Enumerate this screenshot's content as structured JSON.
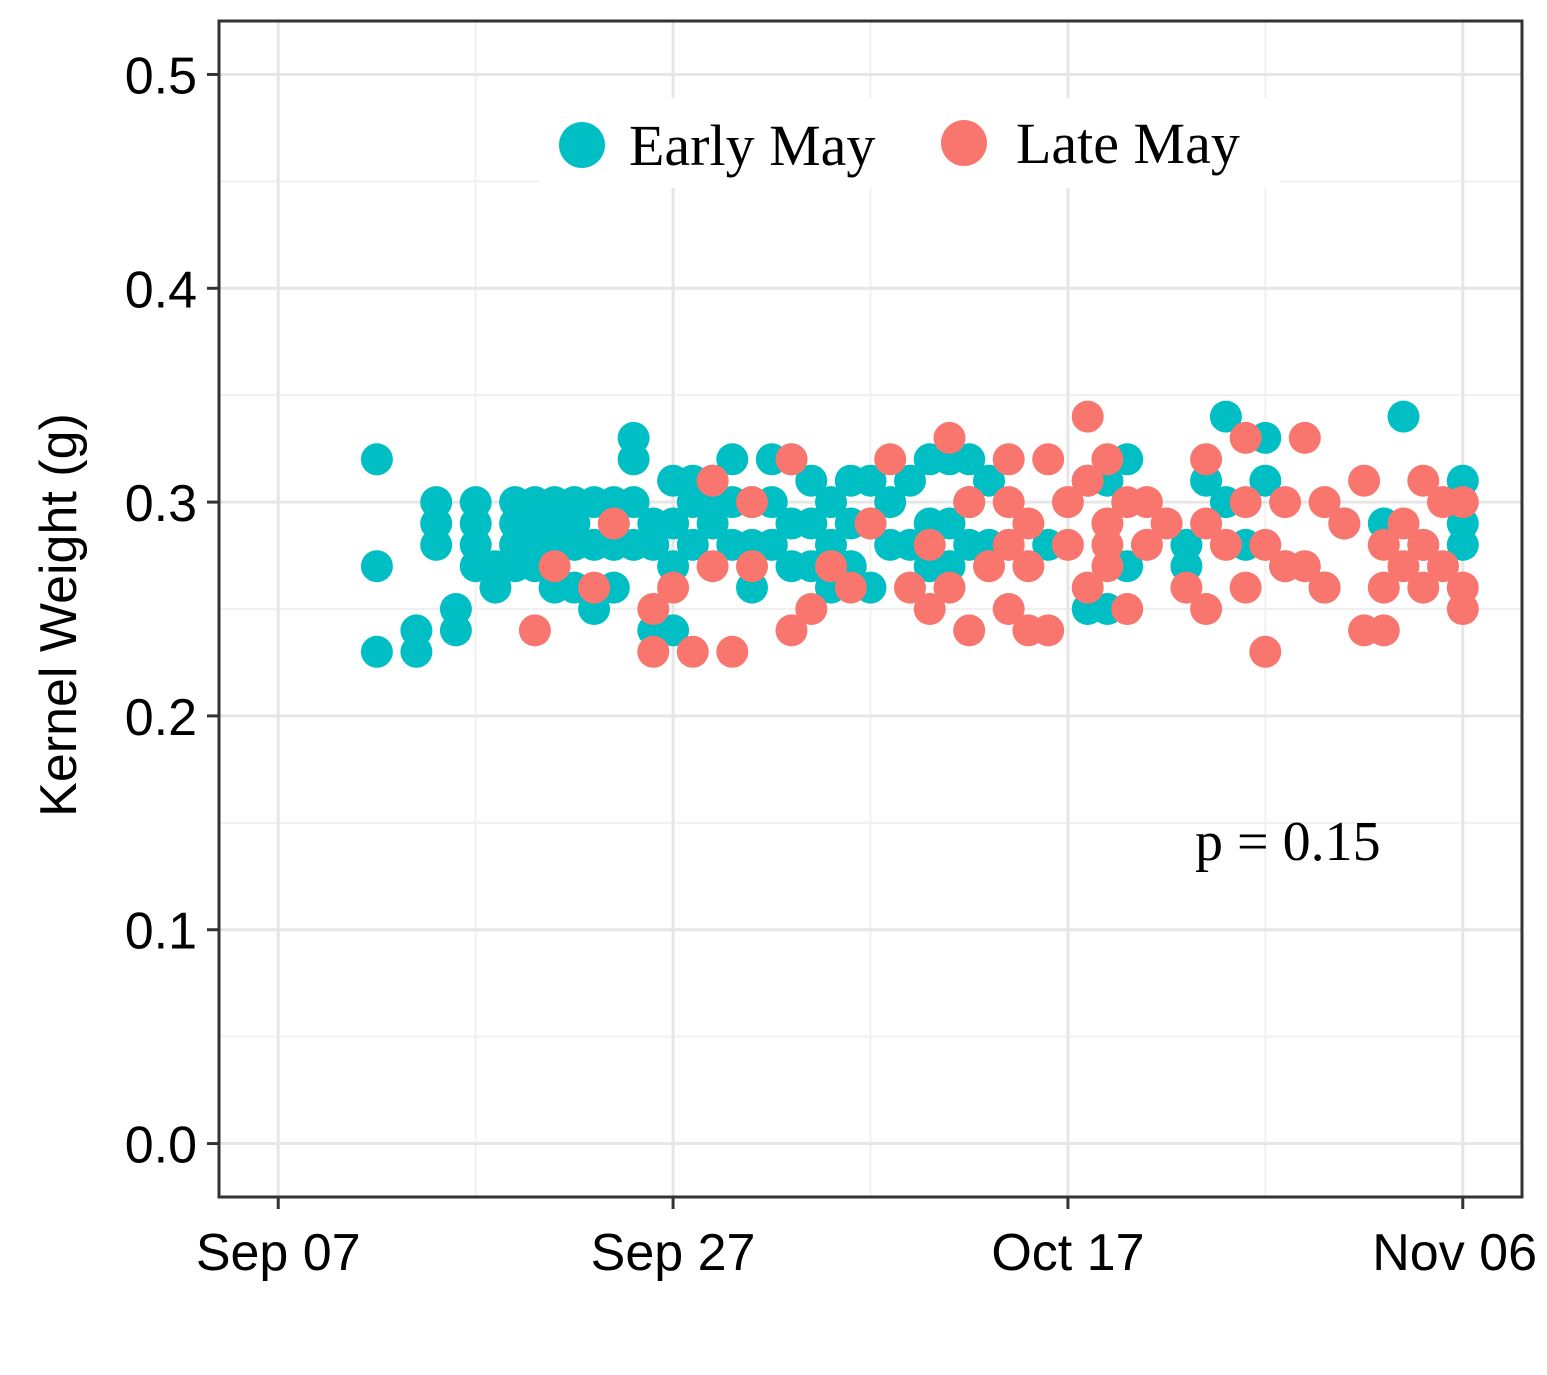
{
  "chart_data": {
    "type": "scatter",
    "title": "",
    "xlabel": "",
    "ylabel": "Kernel Weight (g)",
    "x_type": "date",
    "xlim": [
      "2021-09-04",
      "2021-11-09"
    ],
    "ylim": [
      -0.025,
      0.525
    ],
    "x_ticks": [
      {
        "value": "2021-09-07",
        "label": "Sep 07"
      },
      {
        "value": "2021-09-27",
        "label": "Sep 27"
      },
      {
        "value": "2021-10-17",
        "label": "Oct 17"
      },
      {
        "value": "2021-11-06",
        "label": "Nov 06"
      }
    ],
    "y_ticks": [
      {
        "value": 0.0,
        "label": "0.0"
      },
      {
        "value": 0.1,
        "label": "0.1"
      },
      {
        "value": 0.2,
        "label": "0.2"
      },
      {
        "value": 0.3,
        "label": "0.3"
      },
      {
        "value": 0.4,
        "label": "0.4"
      },
      {
        "value": 0.5,
        "label": "0.5"
      }
    ],
    "grid": true,
    "legend_position": "top",
    "annotation": "p = 0.15",
    "series": [
      {
        "name": "Early May",
        "color": "#00BFC4",
        "x": [
          "2021-09-12",
          "2021-09-12",
          "2021-09-12",
          "2021-09-14",
          "2021-09-14",
          "2021-09-15",
          "2021-09-15",
          "2021-09-15",
          "2021-09-16",
          "2021-09-16",
          "2021-09-17",
          "2021-09-17",
          "2021-09-17",
          "2021-09-17",
          "2021-09-18",
          "2021-09-18",
          "2021-09-19",
          "2021-09-19",
          "2021-09-19",
          "2021-09-19",
          "2021-09-20",
          "2021-09-20",
          "2021-09-20",
          "2021-09-20",
          "2021-09-21",
          "2021-09-21",
          "2021-09-21",
          "2021-09-21",
          "2021-09-22",
          "2021-09-22",
          "2021-09-22",
          "2021-09-22",
          "2021-09-23",
          "2021-09-23",
          "2021-09-23",
          "2021-09-24",
          "2021-09-24",
          "2021-09-24",
          "2021-09-24",
          "2021-09-25",
          "2021-09-25",
          "2021-09-25",
          "2021-09-25",
          "2021-09-26",
          "2021-09-26",
          "2021-09-26",
          "2021-09-27",
          "2021-09-27",
          "2021-09-27",
          "2021-09-27",
          "2021-09-28",
          "2021-09-28",
          "2021-09-28",
          "2021-09-29",
          "2021-09-29",
          "2021-09-29",
          "2021-09-30",
          "2021-09-30",
          "2021-09-30",
          "2021-10-01",
          "2021-10-01",
          "2021-10-01",
          "2021-10-02",
          "2021-10-02",
          "2021-10-02",
          "2021-10-03",
          "2021-10-03",
          "2021-10-03",
          "2021-10-04",
          "2021-10-04",
          "2021-10-04",
          "2021-10-05",
          "2021-10-05",
          "2021-10-05",
          "2021-10-06",
          "2021-10-06",
          "2021-10-06",
          "2021-10-07",
          "2021-10-07",
          "2021-10-07",
          "2021-10-08",
          "2021-10-08",
          "2021-10-09",
          "2021-10-09",
          "2021-10-10",
          "2021-10-10",
          "2021-10-10",
          "2021-10-11",
          "2021-10-11",
          "2021-10-11",
          "2021-10-12",
          "2021-10-12",
          "2021-10-12",
          "2021-10-13",
          "2021-10-13",
          "2021-10-16",
          "2021-10-18",
          "2021-10-18",
          "2021-10-19",
          "2021-10-19",
          "2021-10-20",
          "2021-10-20",
          "2021-10-23",
          "2021-10-23",
          "2021-10-24",
          "2021-10-25",
          "2021-10-25",
          "2021-10-26",
          "2021-10-27",
          "2021-10-27",
          "2021-10-28",
          "2021-10-30",
          "2021-10-31",
          "2021-11-02",
          "2021-11-03",
          "2021-11-04",
          "2021-11-06",
          "2021-11-06",
          "2021-11-06"
        ],
        "y": [
          0.32,
          0.27,
          0.23,
          0.23,
          0.24,
          0.3,
          0.29,
          0.28,
          0.25,
          0.24,
          0.3,
          0.29,
          0.28,
          0.27,
          0.27,
          0.26,
          0.3,
          0.29,
          0.28,
          0.27,
          0.3,
          0.29,
          0.28,
          0.27,
          0.3,
          0.29,
          0.28,
          0.26,
          0.3,
          0.29,
          0.28,
          0.26,
          0.3,
          0.28,
          0.25,
          0.3,
          0.29,
          0.28,
          0.26,
          0.33,
          0.32,
          0.3,
          0.28,
          0.29,
          0.28,
          0.24,
          0.31,
          0.29,
          0.27,
          0.24,
          0.31,
          0.3,
          0.28,
          0.31,
          0.3,
          0.29,
          0.32,
          0.3,
          0.28,
          0.3,
          0.28,
          0.26,
          0.32,
          0.3,
          0.28,
          0.32,
          0.29,
          0.27,
          0.31,
          0.29,
          0.27,
          0.3,
          0.28,
          0.26,
          0.31,
          0.29,
          0.27,
          0.31,
          0.29,
          0.26,
          0.3,
          0.28,
          0.31,
          0.28,
          0.32,
          0.29,
          0.27,
          0.32,
          0.29,
          0.27,
          0.32,
          0.3,
          0.28,
          0.31,
          0.28,
          0.28,
          0.31,
          0.25,
          0.31,
          0.25,
          0.32,
          0.27,
          0.28,
          0.27,
          0.31,
          0.34,
          0.3,
          0.28,
          0.33,
          0.31,
          0.27,
          0.26,
          0.29,
          0.29,
          0.34,
          0.28,
          0.31,
          0.29,
          0.28
        ]
      },
      {
        "name": "Late May",
        "color": "#F8766D",
        "x": [
          "2021-09-20",
          "2021-09-21",
          "2021-09-23",
          "2021-09-24",
          "2021-09-26",
          "2021-09-26",
          "2021-09-27",
          "2021-09-28",
          "2021-09-29",
          "2021-09-29",
          "2021-09-30",
          "2021-10-01",
          "2021-10-01",
          "2021-10-03",
          "2021-10-03",
          "2021-10-04",
          "2021-10-05",
          "2021-10-06",
          "2021-10-07",
          "2021-10-08",
          "2021-10-09",
          "2021-10-10",
          "2021-10-10",
          "2021-10-11",
          "2021-10-11",
          "2021-10-12",
          "2021-10-12",
          "2021-10-13",
          "2021-10-14",
          "2021-10-14",
          "2021-10-14",
          "2021-10-14",
          "2021-10-15",
          "2021-10-15",
          "2021-10-15",
          "2021-10-16",
          "2021-10-16",
          "2021-10-17",
          "2021-10-17",
          "2021-10-18",
          "2021-10-18",
          "2021-10-18",
          "2021-10-19",
          "2021-10-19",
          "2021-10-19",
          "2021-10-19",
          "2021-10-20",
          "2021-10-20",
          "2021-10-21",
          "2021-10-21",
          "2021-10-22",
          "2021-10-23",
          "2021-10-24",
          "2021-10-24",
          "2021-10-24",
          "2021-10-25",
          "2021-10-26",
          "2021-10-26",
          "2021-10-26",
          "2021-10-27",
          "2021-10-27",
          "2021-10-28",
          "2021-10-28",
          "2021-10-29",
          "2021-10-29",
          "2021-10-30",
          "2021-10-30",
          "2021-10-31",
          "2021-11-01",
          "2021-11-01",
          "2021-11-02",
          "2021-11-02",
          "2021-11-02",
          "2021-11-03",
          "2021-11-03",
          "2021-11-04",
          "2021-11-04",
          "2021-11-04",
          "2021-11-05",
          "2021-11-05",
          "2021-11-06",
          "2021-11-06",
          "2021-11-06"
        ],
        "y": [
          0.24,
          0.27,
          0.26,
          0.29,
          0.23,
          0.25,
          0.26,
          0.23,
          0.27,
          0.31,
          0.23,
          0.3,
          0.27,
          0.24,
          0.32,
          0.25,
          0.27,
          0.26,
          0.29,
          0.32,
          0.26,
          0.25,
          0.28,
          0.26,
          0.33,
          0.24,
          0.3,
          0.27,
          0.25,
          0.3,
          0.32,
          0.28,
          0.24,
          0.29,
          0.27,
          0.32,
          0.24,
          0.3,
          0.28,
          0.34,
          0.31,
          0.26,
          0.32,
          0.29,
          0.27,
          0.28,
          0.3,
          0.25,
          0.3,
          0.28,
          0.29,
          0.26,
          0.32,
          0.29,
          0.25,
          0.28,
          0.33,
          0.3,
          0.26,
          0.23,
          0.28,
          0.3,
          0.27,
          0.27,
          0.33,
          0.3,
          0.26,
          0.29,
          0.31,
          0.24,
          0.28,
          0.26,
          0.24,
          0.29,
          0.27,
          0.31,
          0.28,
          0.26,
          0.3,
          0.27,
          0.3,
          0.26,
          0.25
        ]
      }
    ]
  }
}
